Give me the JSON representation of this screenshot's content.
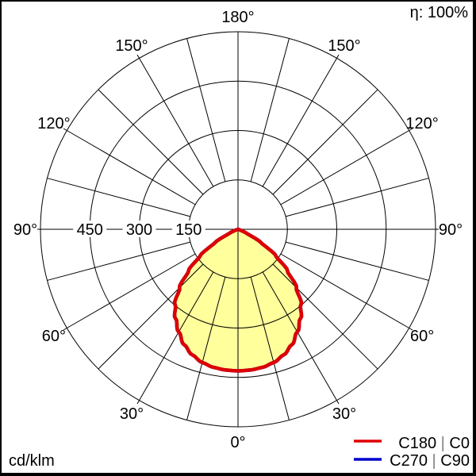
{
  "header": {
    "efficiency": "η: 100%"
  },
  "footer": {
    "unit": "cd/klm"
  },
  "chart_data": {
    "type": "polar-photometric",
    "unit": "cd/klm",
    "efficiency": "η: 100%",
    "radial_max": 600,
    "radial_ticks": [
      {
        "value": 150,
        "text": "150"
      },
      {
        "value": 300,
        "text": "300"
      },
      {
        "value": 450,
        "text": "450"
      }
    ],
    "angle_grid_step_deg": 15,
    "angle_labels": [
      {
        "angle": 180,
        "text": "180°"
      },
      {
        "angle": -150,
        "text": "150°"
      },
      {
        "angle": 150,
        "text": "150°"
      },
      {
        "angle": -120,
        "text": "120°"
      },
      {
        "angle": 120,
        "text": "120°"
      },
      {
        "angle": -90,
        "text": "90°"
      },
      {
        "angle": 90,
        "text": "90°"
      },
      {
        "angle": -60,
        "text": "60°"
      },
      {
        "angle": 60,
        "text": "60°"
      },
      {
        "angle": -30,
        "text": "30°"
      },
      {
        "angle": 30,
        "text": "30°"
      },
      {
        "angle": 0,
        "text": "0°"
      }
    ],
    "fill_color": "#ffff9c",
    "legend_separator_color": "#808080",
    "series": [
      {
        "name": "C180 | C0",
        "color": "#dd0000",
        "symmetric": true,
        "points": [
          [
            0,
            430
          ],
          [
            5,
            429
          ],
          [
            10,
            426
          ],
          [
            15,
            419
          ],
          [
            20,
            406
          ],
          [
            25,
            387
          ],
          [
            30,
            360
          ],
          [
            35,
            331
          ],
          [
            40,
            298
          ],
          [
            45,
            251
          ],
          [
            50,
            196
          ],
          [
            55,
            140
          ],
          [
            60,
            80
          ],
          [
            65,
            28
          ],
          [
            70,
            7
          ],
          [
            75,
            0
          ]
        ]
      },
      {
        "name": "C270 | C90",
        "color": "#0000cc",
        "symmetric": true,
        "points": [
          [
            0,
            430
          ],
          [
            5,
            429
          ],
          [
            10,
            426
          ],
          [
            15,
            419
          ],
          [
            20,
            406
          ],
          [
            25,
            387
          ],
          [
            30,
            360
          ],
          [
            35,
            331
          ],
          [
            40,
            298
          ],
          [
            45,
            251
          ],
          [
            50,
            196
          ],
          [
            55,
            140
          ],
          [
            60,
            80
          ],
          [
            65,
            28
          ],
          [
            70,
            7
          ],
          [
            75,
            0
          ]
        ]
      }
    ]
  }
}
